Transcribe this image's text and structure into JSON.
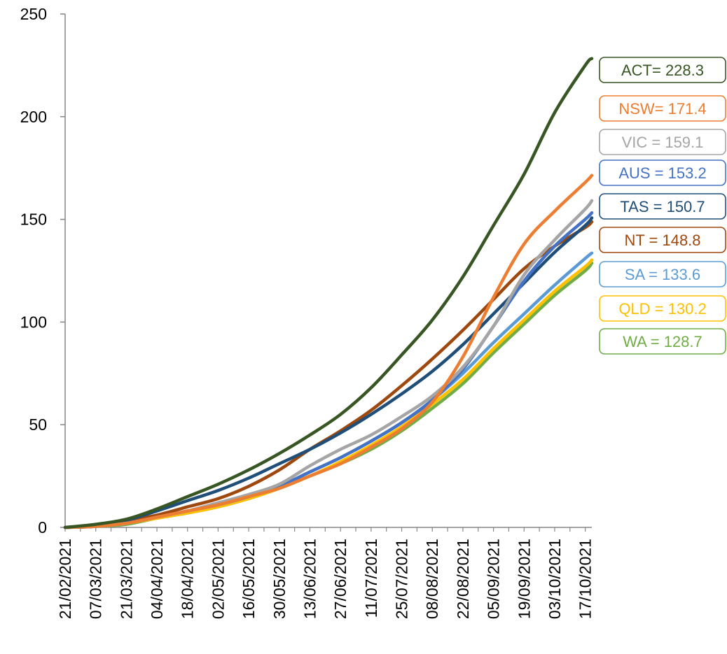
{
  "chart_data": {
    "type": "line",
    "title": "",
    "xlabel": "",
    "ylabel": "",
    "ylim": [
      0,
      250
    ],
    "yticks": [
      0,
      50,
      100,
      150,
      200,
      250
    ],
    "x_start": "21/02/2021",
    "x_end": "20/10/2021",
    "x_tick_labels": [
      "21/02/2021",
      "07/03/2021",
      "21/03/2021",
      "04/04/2021",
      "18/04/2021",
      "02/05/2021",
      "16/05/2021",
      "30/05/2021",
      "13/06/2021",
      "27/06/2021",
      "11/07/2021",
      "25/07/2021",
      "08/08/2021",
      "22/08/2021",
      "05/09/2021",
      "19/09/2021",
      "03/10/2021",
      "17/10/2021"
    ],
    "grid": false,
    "legend": "none",
    "series": [
      {
        "name": "ACT",
        "label": "ACT= 228.3",
        "color": "#375623",
        "final": 228.3,
        "points": [
          [
            "21/02/2021",
            0
          ],
          [
            "07/03/2021",
            1.5
          ],
          [
            "21/03/2021",
            4
          ],
          [
            "04/04/2021",
            9
          ],
          [
            "18/04/2021",
            15
          ],
          [
            "02/05/2021",
            21
          ],
          [
            "16/05/2021",
            28
          ],
          [
            "30/05/2021",
            36
          ],
          [
            "13/06/2021",
            45
          ],
          [
            "27/06/2021",
            55
          ],
          [
            "11/07/2021",
            68
          ],
          [
            "25/07/2021",
            84
          ],
          [
            "08/08/2021",
            101
          ],
          [
            "22/08/2021",
            122
          ],
          [
            "05/09/2021",
            147
          ],
          [
            "19/09/2021",
            172
          ],
          [
            "03/10/2021",
            202
          ],
          [
            "17/10/2021",
            225
          ],
          [
            "20/10/2021",
            228.3
          ]
        ]
      },
      {
        "name": "NSW",
        "label": "NSW= 171.4",
        "color": "#ED7D31",
        "final": 171.4,
        "points": [
          [
            "21/02/2021",
            0
          ],
          [
            "07/03/2021",
            0.5
          ],
          [
            "21/03/2021",
            2
          ],
          [
            "04/04/2021",
            5
          ],
          [
            "18/04/2021",
            8
          ],
          [
            "02/05/2021",
            11
          ],
          [
            "16/05/2021",
            15
          ],
          [
            "30/05/2021",
            19
          ],
          [
            "13/06/2021",
            25
          ],
          [
            "27/06/2021",
            31
          ],
          [
            "11/07/2021",
            39
          ],
          [
            "25/07/2021",
            48
          ],
          [
            "08/08/2021",
            61
          ],
          [
            "22/08/2021",
            83
          ],
          [
            "05/09/2021",
            112
          ],
          [
            "19/09/2021",
            138
          ],
          [
            "03/10/2021",
            154
          ],
          [
            "17/10/2021",
            168
          ],
          [
            "20/10/2021",
            171.4
          ]
        ]
      },
      {
        "name": "VIC",
        "label": "VIC = 159.1",
        "color": "#A5A5A5",
        "final": 159.1,
        "points": [
          [
            "21/02/2021",
            0
          ],
          [
            "07/03/2021",
            0.5
          ],
          [
            "21/03/2021",
            2
          ],
          [
            "04/04/2021",
            5
          ],
          [
            "18/04/2021",
            8
          ],
          [
            "02/05/2021",
            12
          ],
          [
            "16/05/2021",
            16
          ],
          [
            "30/05/2021",
            21
          ],
          [
            "13/06/2021",
            30
          ],
          [
            "27/06/2021",
            38
          ],
          [
            "11/07/2021",
            45
          ],
          [
            "25/07/2021",
            54
          ],
          [
            "08/08/2021",
            64
          ],
          [
            "22/08/2021",
            78
          ],
          [
            "05/09/2021",
            98
          ],
          [
            "19/09/2021",
            123
          ],
          [
            "03/10/2021",
            140
          ],
          [
            "17/10/2021",
            155
          ],
          [
            "20/10/2021",
            159.1
          ]
        ]
      },
      {
        "name": "AUS",
        "label": "AUS = 153.2",
        "color": "#4472C4",
        "final": 153.2,
        "points": [
          [
            "21/02/2021",
            0
          ],
          [
            "07/03/2021",
            0.5
          ],
          [
            "21/03/2021",
            2
          ],
          [
            "04/04/2021",
            5
          ],
          [
            "18/04/2021",
            8
          ],
          [
            "02/05/2021",
            11
          ],
          [
            "16/05/2021",
            15
          ],
          [
            "30/05/2021",
            20
          ],
          [
            "13/06/2021",
            27
          ],
          [
            "27/06/2021",
            34
          ],
          [
            "11/07/2021",
            42
          ],
          [
            "25/07/2021",
            51
          ],
          [
            "08/08/2021",
            62
          ],
          [
            "22/08/2021",
            77
          ],
          [
            "05/09/2021",
            98
          ],
          [
            "19/09/2021",
            120
          ],
          [
            "03/10/2021",
            137
          ],
          [
            "17/10/2021",
            150
          ],
          [
            "20/10/2021",
            153.2
          ]
        ]
      },
      {
        "name": "TAS",
        "label": "TAS = 150.7",
        "color": "#1F4E79",
        "final": 150.7,
        "points": [
          [
            "21/02/2021",
            0
          ],
          [
            "07/03/2021",
            1
          ],
          [
            "21/03/2021",
            3.5
          ],
          [
            "04/04/2021",
            8
          ],
          [
            "18/04/2021",
            13
          ],
          [
            "02/05/2021",
            18
          ],
          [
            "16/05/2021",
            24
          ],
          [
            "30/05/2021",
            31
          ],
          [
            "13/06/2021",
            38
          ],
          [
            "27/06/2021",
            46
          ],
          [
            "11/07/2021",
            55
          ],
          [
            "25/07/2021",
            65
          ],
          [
            "08/08/2021",
            76
          ],
          [
            "22/08/2021",
            89
          ],
          [
            "05/09/2021",
            104
          ],
          [
            "19/09/2021",
            119
          ],
          [
            "03/10/2021",
            134
          ],
          [
            "17/10/2021",
            147
          ],
          [
            "20/10/2021",
            150.7
          ]
        ]
      },
      {
        "name": "NT",
        "label": "NT = 148.8",
        "color": "#9E480E",
        "final": 148.8,
        "points": [
          [
            "21/02/2021",
            0
          ],
          [
            "07/03/2021",
            0.5
          ],
          [
            "21/03/2021",
            3
          ],
          [
            "04/04/2021",
            6
          ],
          [
            "18/04/2021",
            10
          ],
          [
            "02/05/2021",
            14
          ],
          [
            "16/05/2021",
            20
          ],
          [
            "30/05/2021",
            28
          ],
          [
            "13/06/2021",
            38
          ],
          [
            "27/06/2021",
            47
          ],
          [
            "11/07/2021",
            57
          ],
          [
            "25/07/2021",
            69
          ],
          [
            "08/08/2021",
            82
          ],
          [
            "22/08/2021",
            96
          ],
          [
            "05/09/2021",
            111
          ],
          [
            "19/09/2021",
            126
          ],
          [
            "03/10/2021",
            137
          ],
          [
            "17/10/2021",
            146
          ],
          [
            "20/10/2021",
            148.8
          ]
        ]
      },
      {
        "name": "SA",
        "label": "SA = 133.6",
        "color": "#5B9BD5",
        "final": 133.6,
        "points": [
          [
            "21/02/2021",
            0
          ],
          [
            "07/03/2021",
            0.5
          ],
          [
            "21/03/2021",
            2
          ],
          [
            "04/04/2021",
            5
          ],
          [
            "18/04/2021",
            8
          ],
          [
            "02/05/2021",
            11
          ],
          [
            "16/05/2021",
            15
          ],
          [
            "30/05/2021",
            20
          ],
          [
            "13/06/2021",
            27
          ],
          [
            "27/06/2021",
            34
          ],
          [
            "11/07/2021",
            42
          ],
          [
            "25/07/2021",
            51
          ],
          [
            "08/08/2021",
            62
          ],
          [
            "22/08/2021",
            75
          ],
          [
            "05/09/2021",
            90
          ],
          [
            "19/09/2021",
            104
          ],
          [
            "03/10/2021",
            118
          ],
          [
            "17/10/2021",
            131
          ],
          [
            "20/10/2021",
            133.6
          ]
        ]
      },
      {
        "name": "QLD",
        "label": "QLD = 130.2",
        "color": "#FFC000",
        "final": 130.2,
        "points": [
          [
            "21/02/2021",
            0
          ],
          [
            "07/03/2021",
            0.5
          ],
          [
            "21/03/2021",
            2
          ],
          [
            "04/04/2021",
            4.5
          ],
          [
            "18/04/2021",
            7
          ],
          [
            "02/05/2021",
            10
          ],
          [
            "16/05/2021",
            14
          ],
          [
            "30/05/2021",
            19
          ],
          [
            "13/06/2021",
            25
          ],
          [
            "27/06/2021",
            32
          ],
          [
            "11/07/2021",
            40
          ],
          [
            "25/07/2021",
            49
          ],
          [
            "08/08/2021",
            60
          ],
          [
            "22/08/2021",
            72
          ],
          [
            "05/09/2021",
            87
          ],
          [
            "19/09/2021",
            101
          ],
          [
            "03/10/2021",
            115
          ],
          [
            "17/10/2021",
            127
          ],
          [
            "20/10/2021",
            130.2
          ]
        ]
      },
      {
        "name": "WA",
        "label": "WA = 128.7",
        "color": "#70AD47",
        "final": 128.7,
        "points": [
          [
            "21/02/2021",
            0
          ],
          [
            "07/03/2021",
            0.5
          ],
          [
            "21/03/2021",
            1.5
          ],
          [
            "04/04/2021",
            4.5
          ],
          [
            "18/04/2021",
            7
          ],
          [
            "02/05/2021",
            10
          ],
          [
            "16/05/2021",
            14
          ],
          [
            "30/05/2021",
            19
          ],
          [
            "13/06/2021",
            25
          ],
          [
            "27/06/2021",
            31
          ],
          [
            "11/07/2021",
            38
          ],
          [
            "25/07/2021",
            47
          ],
          [
            "08/08/2021",
            58
          ],
          [
            "22/08/2021",
            70
          ],
          [
            "05/09/2021",
            85
          ],
          [
            "19/09/2021",
            99
          ],
          [
            "03/10/2021",
            113
          ],
          [
            "17/10/2021",
            125
          ],
          [
            "20/10/2021",
            128.7
          ]
        ]
      }
    ]
  }
}
